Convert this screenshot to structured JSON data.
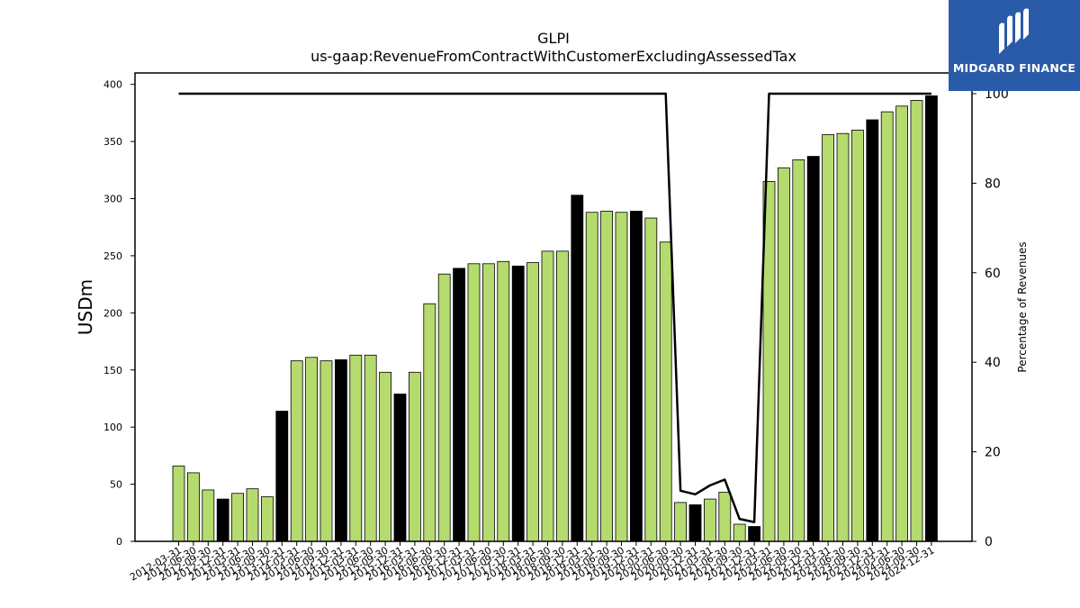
{
  "brand": {
    "name": "MIDGARD FINANCE",
    "color": "#2a5ba8",
    "icon": "midgard-m-logo-icon"
  },
  "colors": {
    "bar_regular": "#b5db6e",
    "bar_q4": "#000000",
    "line": "#000000"
  },
  "chart_data": {
    "type": "bar",
    "title": "GLPI",
    "subtitle": "us-gaap:RevenueFromContractWithCustomerExcludingAssessedTax",
    "ylabel": "USDm",
    "y2label": "Percentage of Revenues",
    "ylim": [
      0,
      410
    ],
    "y2lim": [
      0,
      100
    ],
    "yticks": [
      0,
      50,
      100,
      150,
      200,
      250,
      300,
      350,
      400
    ],
    "y2ticks": [
      0,
      20,
      40,
      60,
      80,
      100
    ],
    "grid": false,
    "legend": "none",
    "categories": [
      "2012-03-31",
      "2012-06-30",
      "2012-09-30",
      "2012-12-31",
      "2013-03-31",
      "2013-06-30",
      "2013-09-30",
      "2013-12-31",
      "2014-03-31",
      "2014-06-30",
      "2014-09-30",
      "2014-12-31",
      "2015-03-31",
      "2015-06-30",
      "2015-09-30",
      "2015-12-31",
      "2016-03-31",
      "2016-06-30",
      "2016-09-30",
      "2016-12-31",
      "2017-03-31",
      "2017-06-30",
      "2017-09-30",
      "2017-12-31",
      "2018-03-31",
      "2018-06-30",
      "2018-09-30",
      "2018-12-31",
      "2019-03-31",
      "2019-06-30",
      "2019-09-30",
      "2019-12-31",
      "2020-03-31",
      "2020-06-30",
      "2020-09-30",
      "2020-12-31",
      "2021-03-31",
      "2021-06-30",
      "2021-09-30",
      "2021-12-31",
      "2022-03-31",
      "2022-06-30",
      "2022-09-30",
      "2022-12-31",
      "2023-03-31",
      "2023-06-30",
      "2023-09-30",
      "2023-12-31",
      "2024-03-31",
      "2024-06-30",
      "2024-09-30",
      "2024-12-31"
    ],
    "series": [
      {
        "type": "bar",
        "values": [
          66,
          60,
          45,
          37,
          42,
          46,
          39,
          114,
          158,
          161,
          158,
          159,
          163,
          163,
          148,
          129,
          148,
          208,
          234,
          239,
          243,
          243,
          245,
          241,
          244,
          254,
          254,
          303,
          288,
          289,
          288,
          289,
          283,
          262,
          34,
          32,
          37,
          43,
          15,
          13,
          315,
          327,
          334,
          337,
          356,
          357,
          360,
          369,
          376,
          381,
          386,
          390
        ],
        "highlight_every": 4,
        "highlight_offset": 3
      },
      {
        "type": "line",
        "axis": "y2",
        "values": [
          100,
          100,
          100,
          100,
          100,
          100,
          100,
          100,
          100,
          100,
          100,
          100,
          100,
          100,
          100,
          100,
          100,
          100,
          100,
          100,
          100,
          100,
          100,
          100,
          100,
          100,
          100,
          100,
          100,
          100,
          100,
          100,
          100,
          100,
          11.3,
          10.5,
          12.5,
          13.8,
          5,
          4.3,
          100,
          100,
          100,
          100,
          100,
          100,
          100,
          100,
          100,
          100,
          100,
          100
        ]
      }
    ]
  }
}
